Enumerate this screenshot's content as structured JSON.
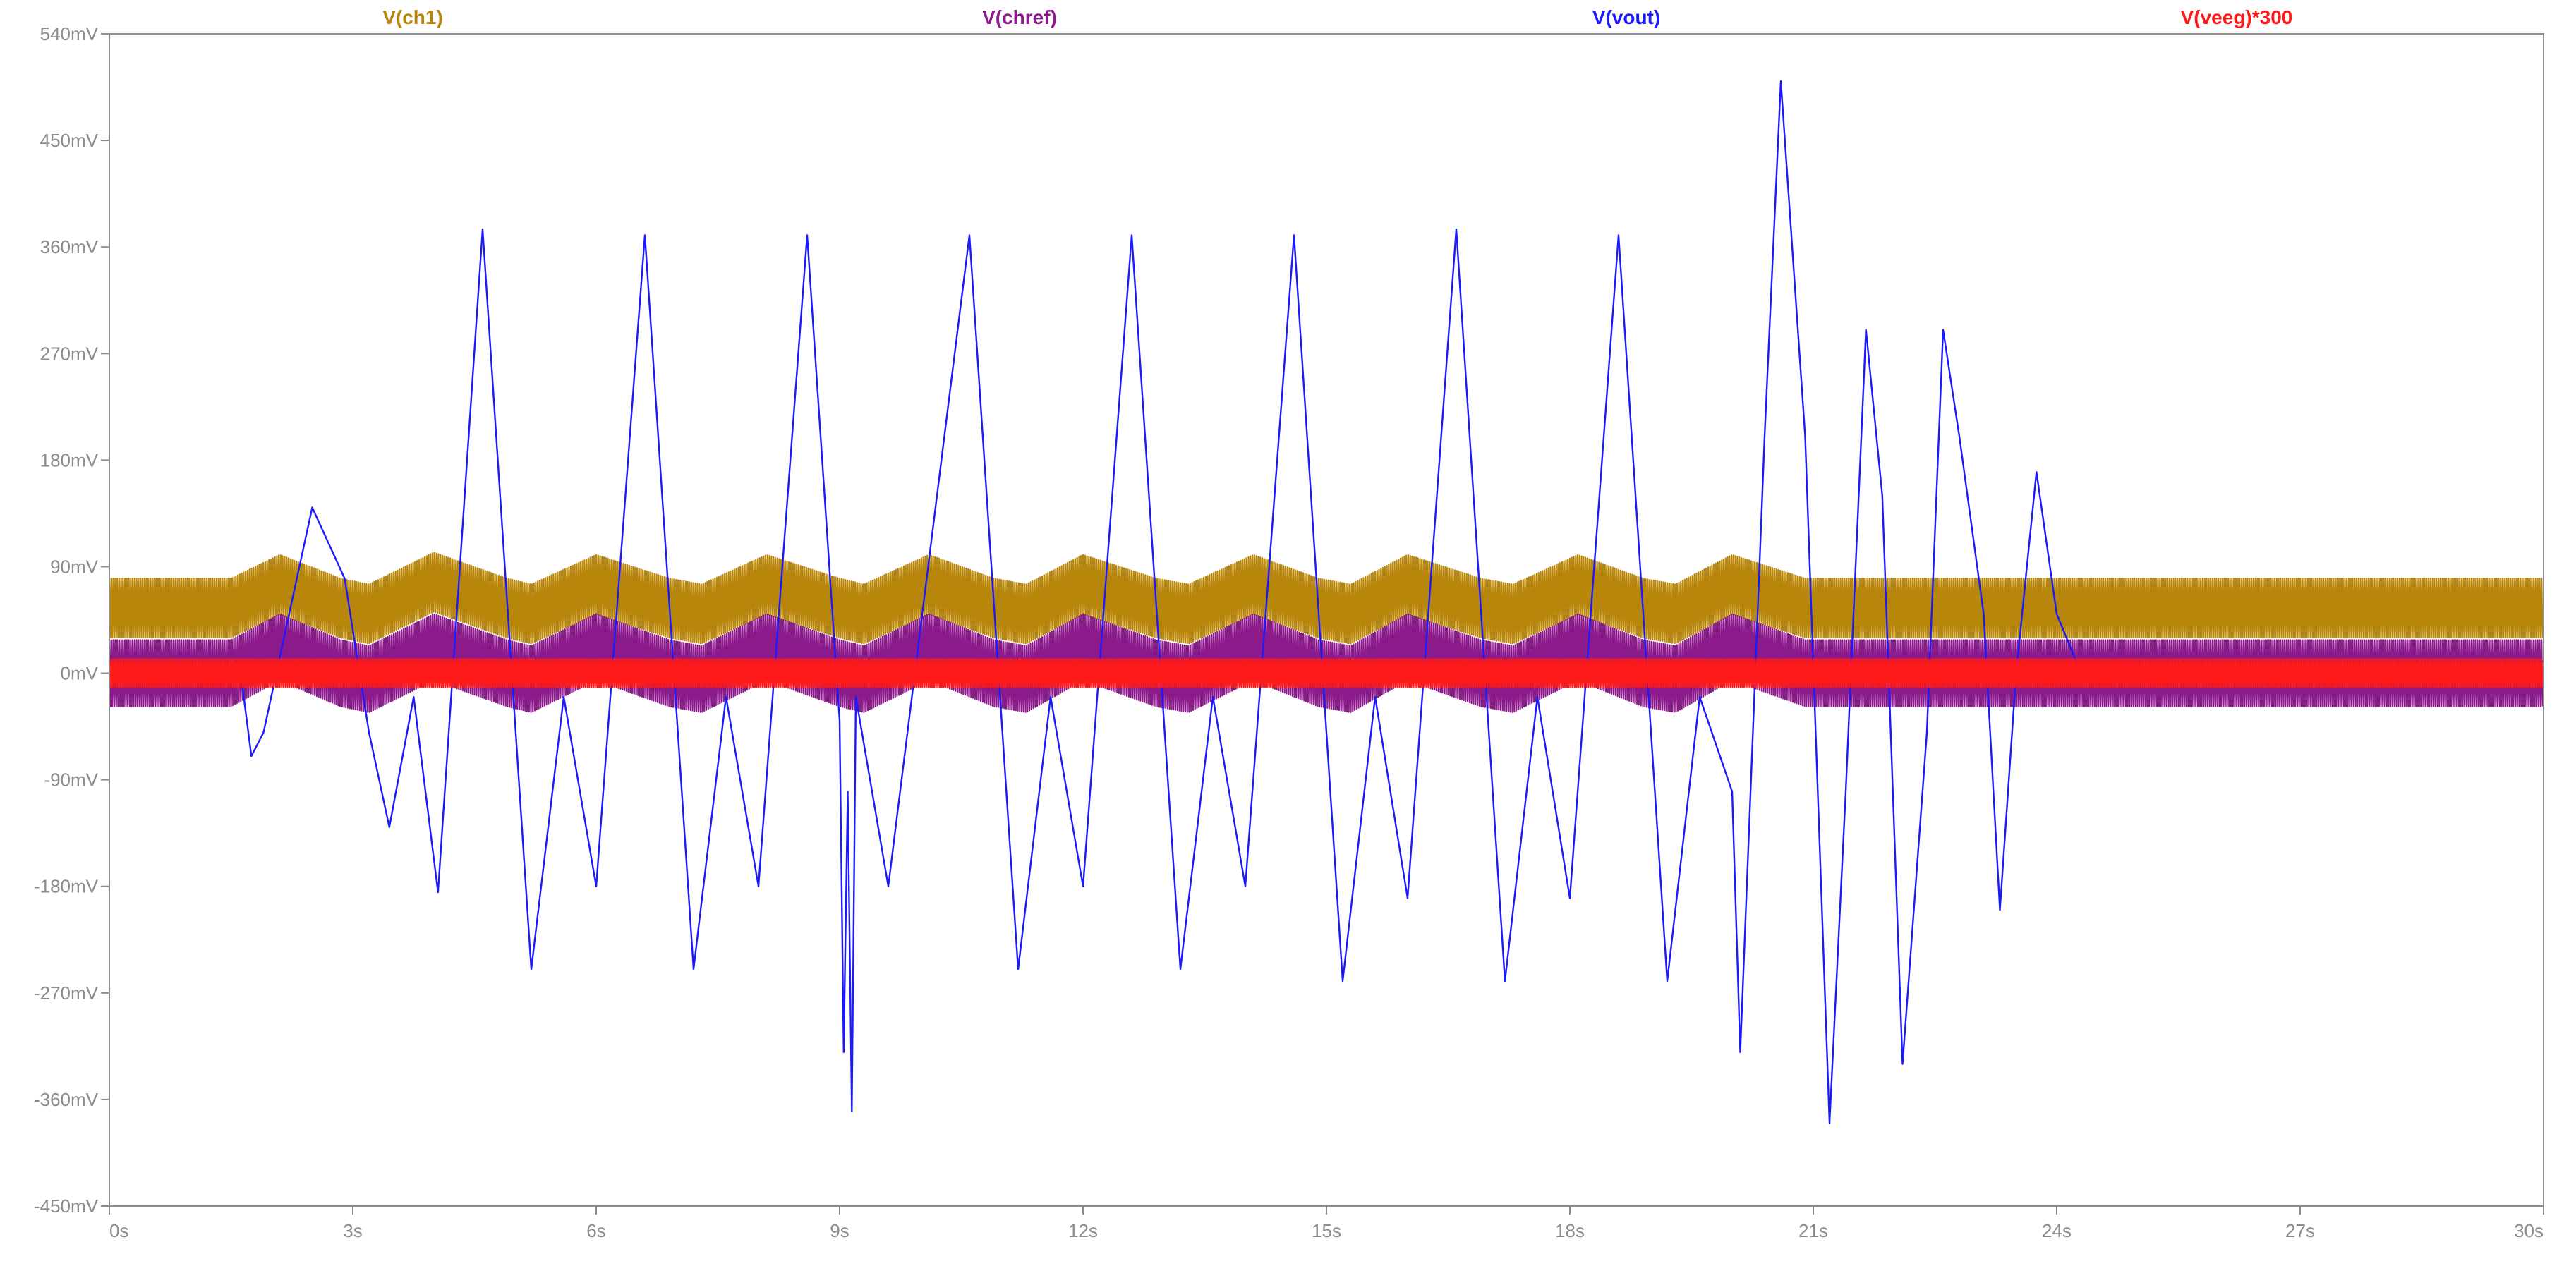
{
  "chart_data": {
    "type": "line",
    "title": "",
    "xlabel": "",
    "ylabel": "",
    "xlim": [
      0,
      30
    ],
    "ylim": [
      -450,
      540
    ],
    "grid": false,
    "legend_position": "top",
    "x_tick_labels": [
      "0s",
      "3s",
      "6s",
      "9s",
      "12s",
      "15s",
      "18s",
      "21s",
      "24s",
      "27s",
      "30s"
    ],
    "y_tick_labels": [
      "540mV",
      "450mV",
      "360mV",
      "270mV",
      "180mV",
      "90mV",
      "0mV",
      "-90mV",
      "-180mV",
      "-270mV",
      "-360mV",
      "-450mV"
    ],
    "series": [
      {
        "name": "V(ch1)",
        "color": "#b8860b",
        "style": "band",
        "points": [
          [
            0,
            55
          ],
          [
            1.5,
            55
          ],
          [
            2.1,
            75
          ],
          [
            2.85,
            55
          ],
          [
            3.2,
            50
          ],
          [
            4,
            77
          ],
          [
            4.9,
            55
          ],
          [
            5.2,
            50
          ],
          [
            6,
            75
          ],
          [
            6.9,
            55
          ],
          [
            7.3,
            50
          ],
          [
            8.1,
            75
          ],
          [
            9,
            55
          ],
          [
            9.3,
            50
          ],
          [
            10.1,
            75
          ],
          [
            10.9,
            55
          ],
          [
            11.3,
            50
          ],
          [
            12,
            75
          ],
          [
            12.9,
            55
          ],
          [
            13.3,
            50
          ],
          [
            14.1,
            75
          ],
          [
            14.9,
            55
          ],
          [
            15.3,
            50
          ],
          [
            16,
            75
          ],
          [
            16.9,
            55
          ],
          [
            17.3,
            50
          ],
          [
            18.1,
            75
          ],
          [
            18.9,
            55
          ],
          [
            19.3,
            50
          ],
          [
            20,
            75
          ],
          [
            20.9,
            55
          ],
          [
            21.3,
            55
          ],
          [
            30,
            55
          ]
        ],
        "band_half_width": 25
      },
      {
        "name": "V(chref)",
        "color": "#8b1a8b",
        "style": "band",
        "points": [
          [
            0,
            0
          ],
          [
            1.5,
            0
          ],
          [
            2.1,
            22
          ],
          [
            2.85,
            0
          ],
          [
            3.2,
            -5
          ],
          [
            4,
            22
          ],
          [
            4.9,
            0
          ],
          [
            5.2,
            -5
          ],
          [
            6,
            22
          ],
          [
            6.9,
            0
          ],
          [
            7.3,
            -5
          ],
          [
            8.1,
            22
          ],
          [
            9,
            0
          ],
          [
            9.3,
            -5
          ],
          [
            10.1,
            22
          ],
          [
            10.9,
            0
          ],
          [
            11.3,
            -5
          ],
          [
            12,
            22
          ],
          [
            12.9,
            0
          ],
          [
            13.3,
            -5
          ],
          [
            14.1,
            22
          ],
          [
            14.9,
            0
          ],
          [
            15.3,
            -5
          ],
          [
            16,
            22
          ],
          [
            16.9,
            0
          ],
          [
            17.3,
            -5
          ],
          [
            18.1,
            22
          ],
          [
            18.9,
            0
          ],
          [
            19.3,
            -5
          ],
          [
            20,
            22
          ],
          [
            20.9,
            0
          ],
          [
            21.3,
            0
          ],
          [
            30,
            0
          ]
        ],
        "band_half_width": 28
      },
      {
        "name": "V(vout)",
        "color": "#1a1aff",
        "style": "line",
        "points": [
          [
            0,
            10
          ],
          [
            1.6,
            10
          ],
          [
            1.75,
            -70
          ],
          [
            1.9,
            -50
          ],
          [
            2.5,
            140
          ],
          [
            2.9,
            80
          ],
          [
            3.2,
            -50
          ],
          [
            3.45,
            -130
          ],
          [
            3.75,
            -20
          ],
          [
            4.05,
            -185
          ],
          [
            4.6,
            375
          ],
          [
            5.2,
            -250
          ],
          [
            5.6,
            -20
          ],
          [
            6,
            -180
          ],
          [
            6.6,
            370
          ],
          [
            7.2,
            -250
          ],
          [
            7.6,
            -20
          ],
          [
            8,
            -180
          ],
          [
            8.6,
            370
          ],
          [
            9,
            -40
          ],
          [
            9.05,
            -320
          ],
          [
            9.1,
            -100
          ],
          [
            9.15,
            -370
          ],
          [
            9.2,
            -20
          ],
          [
            9.6,
            -180
          ],
          [
            10.6,
            370
          ],
          [
            11.2,
            -250
          ],
          [
            11.6,
            -20
          ],
          [
            12,
            -180
          ],
          [
            12.6,
            370
          ],
          [
            13.2,
            -250
          ],
          [
            13.6,
            -20
          ],
          [
            14,
            -180
          ],
          [
            14.6,
            370
          ],
          [
            15.2,
            -260
          ],
          [
            15.6,
            -20
          ],
          [
            16,
            -190
          ],
          [
            16.6,
            375
          ],
          [
            17.2,
            -260
          ],
          [
            17.6,
            -20
          ],
          [
            18,
            -190
          ],
          [
            18.6,
            370
          ],
          [
            19.2,
            -260
          ],
          [
            19.6,
            -20
          ],
          [
            20,
            -100
          ],
          [
            20.1,
            -320
          ],
          [
            20.4,
            200
          ],
          [
            20.6,
            500
          ],
          [
            20.9,
            200
          ],
          [
            21.2,
            -380
          ],
          [
            21.4,
            -100
          ],
          [
            21.65,
            290
          ],
          [
            21.85,
            150
          ],
          [
            22.1,
            -330
          ],
          [
            22.4,
            -50
          ],
          [
            22.6,
            290
          ],
          [
            22.8,
            200
          ],
          [
            23.1,
            50
          ],
          [
            23.3,
            -200
          ],
          [
            23.5,
            0
          ],
          [
            23.75,
            170
          ],
          [
            24,
            50
          ],
          [
            24.3,
            0
          ],
          [
            25,
            10
          ],
          [
            30,
            10
          ]
        ]
      },
      {
        "name": "V(veeg)*300",
        "color": "#ff1a1a",
        "style": "band",
        "points": [
          [
            0,
            0
          ],
          [
            15,
            0
          ],
          [
            20.5,
            0
          ],
          [
            22,
            0
          ],
          [
            30,
            0
          ]
        ],
        "band_half_width": 12
      }
    ]
  }
}
